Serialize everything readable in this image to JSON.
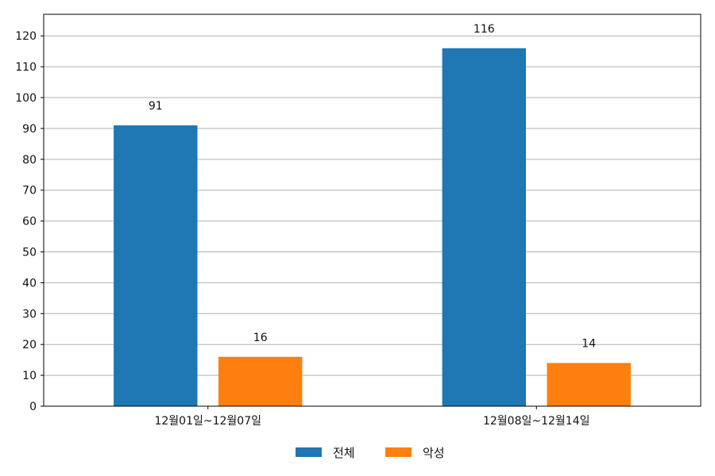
{
  "chart_data": {
    "type": "bar",
    "categories": [
      "12월01일~12월07일",
      "12월08일~12월14일"
    ],
    "series": [
      {
        "name": "전체",
        "values": [
          91,
          116
        ],
        "color": "#1f77b4"
      },
      {
        "name": "악성",
        "values": [
          16,
          14
        ],
        "color": "#ff7f0e"
      }
    ],
    "ylim": [
      0,
      127
    ],
    "yticks": [
      0,
      10,
      20,
      30,
      40,
      50,
      60,
      70,
      80,
      90,
      100,
      110,
      120
    ],
    "grid": true,
    "legend_position": "bottom-center",
    "data_labels": true
  }
}
